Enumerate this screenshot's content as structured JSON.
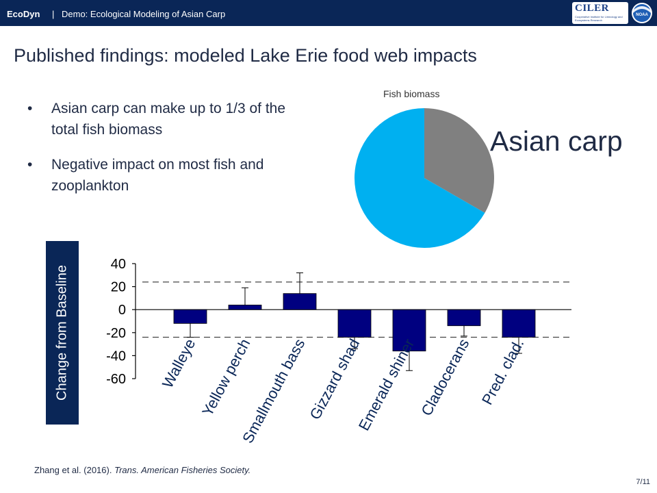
{
  "header": {
    "brand": "EcoDyn",
    "separator": "|",
    "subtitle": "Demo: Ecological Modeling of Asian Carp",
    "logo_left": "CILER",
    "logo_left_tagline": "Cooperative Institute for Limnology and Ecosystems Research",
    "logo_right": "NOAA"
  },
  "slide": {
    "title": "Published findings: modeled Lake Erie food web impacts",
    "bullets": [
      {
        "symbol": "•",
        "text": "Asian carp can make up to 1/3 of the total fish biomass"
      },
      {
        "symbol": "•",
        "text": "Negative impact on most fish and zooplankton"
      }
    ],
    "citation_authors": "Zhang et al. (2016).",
    "citation_journal": "Trans. American Fisheries Society.",
    "page_number": "7/11"
  },
  "colors": {
    "header_bg": "#0a2657",
    "pie_carp": "#808080",
    "pie_other": "#00b0f0",
    "bar_fill": "#000080"
  },
  "chart_data": [
    {
      "type": "pie",
      "title": "Fish biomass",
      "slices": [
        {
          "label": "Asian carp",
          "value": 33.3,
          "color": "#808080"
        },
        {
          "label": "",
          "value": 66.7,
          "color": "#00b0f0"
        }
      ]
    },
    {
      "type": "bar",
      "ylabel": "Change from Baseline",
      "ylim": [
        -60,
        40
      ],
      "yticks": [
        "40",
        "20",
        "0",
        "-20",
        "-40",
        "-60"
      ],
      "categories": [
        "Walleye",
        "Yellow perch",
        "Smallmouth bass",
        "Gizzard shad",
        "Emerald shiner",
        "Cladocerans",
        "Pred. clad."
      ],
      "values": [
        -12,
        4,
        14,
        -24,
        -36,
        -14,
        -24
      ],
      "errors": [
        12,
        15,
        18,
        10,
        17,
        9,
        14
      ],
      "reference_lines": [
        24,
        -24
      ],
      "grid": false
    }
  ]
}
